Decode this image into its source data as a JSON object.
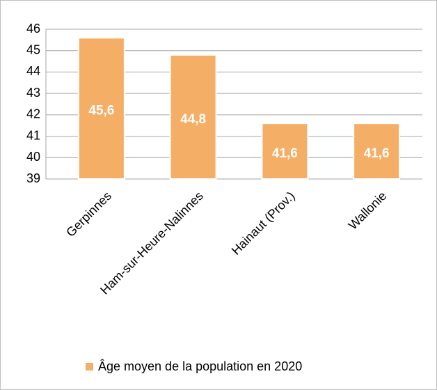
{
  "chart_data": {
    "type": "bar",
    "categories": [
      "Gerpinnes",
      "Ham-sur-Heure-Nalinnes",
      "Hainaut (Prov.)",
      "Wallonie"
    ],
    "series": [
      {
        "name": "Âge moyen de la population en 2020",
        "color": "#f5ae66",
        "values": [
          45.6,
          44.8,
          41.6,
          41.6
        ],
        "value_labels": [
          "45,6",
          "44,8",
          "41,6",
          "41,6"
        ]
      }
    ],
    "ylim": [
      39,
      46
    ],
    "yticks": [
      39,
      40,
      41,
      42,
      43,
      44,
      45,
      46
    ],
    "grid": true,
    "legend": "bottom"
  }
}
